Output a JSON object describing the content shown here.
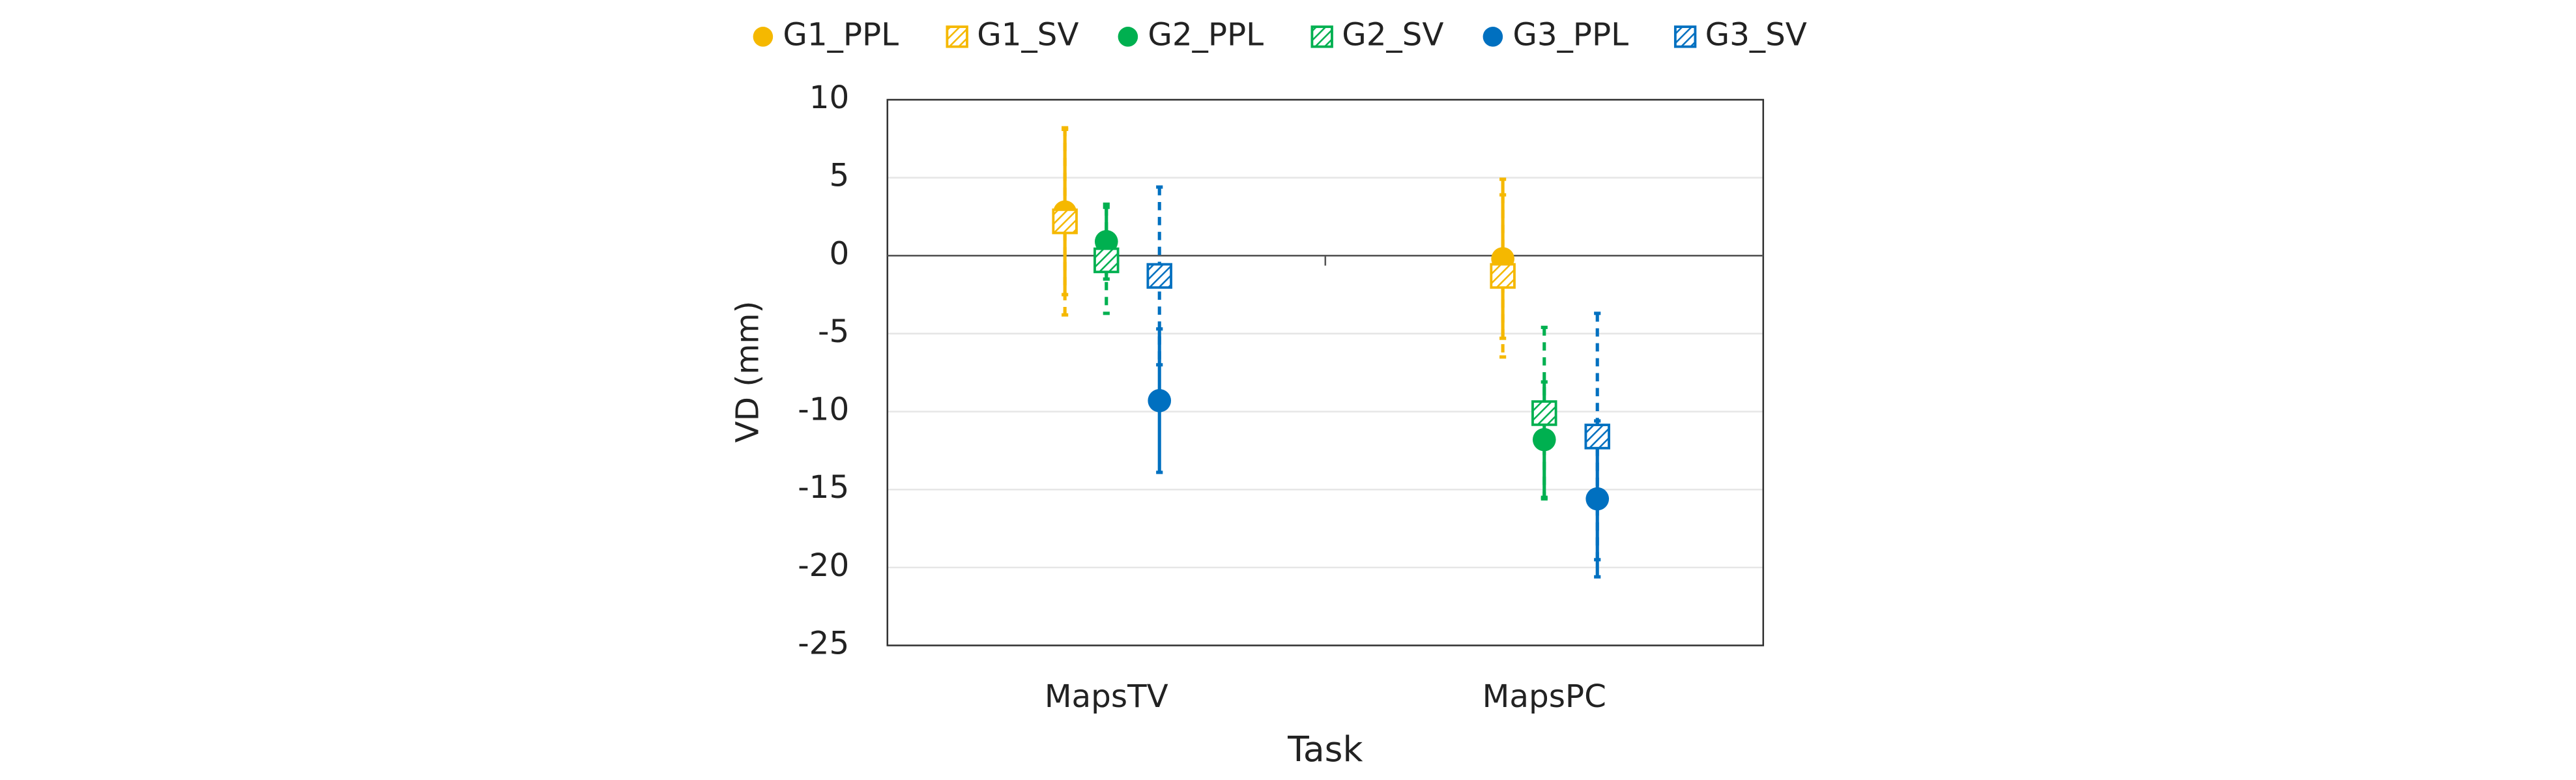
{
  "chart_data": {
    "type": "errorbar",
    "categories": [
      "MapsTV",
      "MapsPC"
    ],
    "x_label": "Task",
    "y_label": "VD (mm)",
    "ylim": [
      -25,
      10
    ],
    "yticks": [
      -25,
      -20,
      -15,
      -10,
      -5,
      0,
      5,
      10
    ],
    "grid": true,
    "legend": "top",
    "series": [
      {
        "name": "G1_PPL",
        "color": "#f5b800",
        "marker": "circle",
        "line_style": "solid",
        "values": [
          2.8,
          -0.2
        ],
        "errors": [
          5.3,
          5.1
        ]
      },
      {
        "name": "G1_SV",
        "color": "#f5b800",
        "marker": "square",
        "line_style": "dashed",
        "values": [
          2.2,
          -1.3
        ],
        "errors": [
          6.0,
          5.2
        ]
      },
      {
        "name": "G2_PPL",
        "color": "#00b050",
        "marker": "circle",
        "line_style": "solid",
        "values": [
          0.9,
          -11.8
        ],
        "errors": [
          2.4,
          3.7
        ]
      },
      {
        "name": "G2_SV",
        "color": "#00b050",
        "marker": "square",
        "line_style": "dashed",
        "values": [
          -0.3,
          -10.1
        ],
        "errors": [
          3.4,
          5.5
        ]
      },
      {
        "name": "G3_PPL",
        "color": "#0070c0",
        "marker": "circle",
        "line_style": "solid",
        "values": [
          -9.3,
          -15.6
        ],
        "errors": [
          4.6,
          5.0
        ]
      },
      {
        "name": "G3_SV",
        "color": "#0070c0",
        "marker": "square",
        "line_style": "dashed",
        "values": [
          -1.3,
          -11.6
        ],
        "errors": [
          5.7,
          7.9
        ]
      }
    ]
  }
}
